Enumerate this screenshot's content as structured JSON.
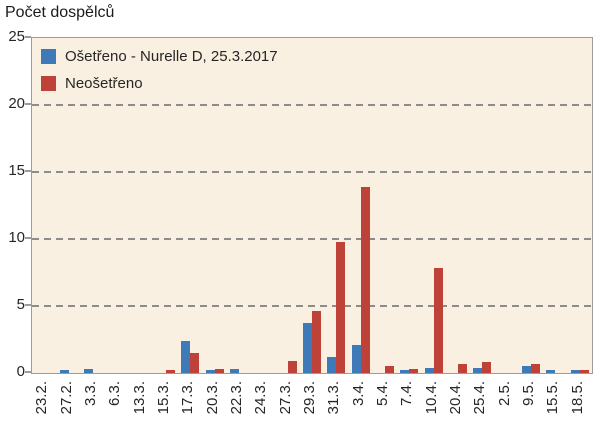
{
  "title": "Počet dospělců",
  "legend": {
    "items": [
      {
        "label": "Ošetřeno - Nurelle D, 25.3.2017",
        "color": "#3E79B8"
      },
      {
        "label": "Neošetřeno",
        "color": "#BF4239"
      }
    ]
  },
  "colors": {
    "plot_background": "#FAF0E1",
    "axis": "#9c9c9c",
    "gridline": "#8c8c8c",
    "text": "#262626"
  },
  "chart_data": {
    "type": "bar",
    "title": "Počet dospělců",
    "ylabel": "Počet dospělců",
    "xlabel": "",
    "ylim": [
      0,
      25
    ],
    "yticks": [
      0,
      5,
      10,
      15,
      20,
      25
    ],
    "grid": "horizontal-dashed",
    "legend_position": "top-left-inside",
    "categories": [
      "23.2.",
      "27.2.",
      "3.3.",
      "6.3.",
      "13.3.",
      "15.3.",
      "17.3.",
      "20.3.",
      "22.3.",
      "24.3.",
      "27.3.",
      "29.3.",
      "31.3.",
      "3.4.",
      "5.4.",
      "7.4.",
      "10.4.",
      "20.4.",
      "25.4.",
      "2.5.",
      "9.5.",
      "15.5.",
      "18.5."
    ],
    "series": [
      {
        "name": "Ošetřeno - Nurelle D, 25.3.2017",
        "color": "#3E79B8",
        "values": [
          0,
          0.2,
          0.3,
          0,
          0,
          0,
          2.4,
          0.2,
          0.3,
          0,
          0,
          3.7,
          1.2,
          2.1,
          0,
          0.2,
          0.4,
          0,
          0.4,
          0,
          0.5,
          0.2,
          0.2
        ]
      },
      {
        "name": "Neošetřeno",
        "color": "#BF4239",
        "values": [
          0,
          0,
          0,
          0,
          0,
          0.2,
          1.5,
          0.3,
          0,
          0,
          0.9,
          4.6,
          9.8,
          13.9,
          0.5,
          0.3,
          7.8,
          0.7,
          0.8,
          0,
          0.7,
          0,
          0.2
        ]
      }
    ]
  }
}
